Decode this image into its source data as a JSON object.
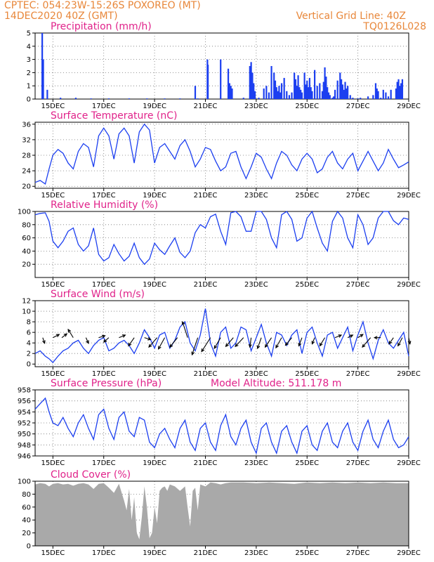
{
  "header": {
    "source_line": "CPTEC:  054:23W-15:26S  POXOREO (MT)",
    "date_line": "14DEC2020 40Z (GMT)",
    "grid_note": "Vertical Grid Line: 40Z",
    "run_code": "TQ0126L028"
  },
  "colors": {
    "header_text": "#e8873a",
    "panel_title": "#e0228a",
    "series_line": "#1c3ff0",
    "cloud_fill": "#a9a9a9",
    "wind_arrow": "#000000"
  },
  "x_axis": {
    "range": [
      14.3,
      29.0
    ],
    "tick_values": [
      15,
      17,
      19,
      21,
      23,
      25,
      27,
      29
    ],
    "tick_labels": [
      "15DEC",
      "17DEC",
      "19DEC",
      "21DEC",
      "23DEC",
      "25DEC",
      "27DEC",
      "29DEC"
    ]
  },
  "chart_data": [
    {
      "type": "bar",
      "title": "Precipitation (mm/h)",
      "ylim": [
        0,
        5
      ],
      "y_ticks": [
        0,
        1,
        2,
        3,
        4,
        5
      ],
      "grid": true,
      "x": [
        14.58,
        14.62,
        14.78,
        15.3,
        15.9,
        16.5,
        17.2,
        18.0,
        18.7,
        19.4,
        20.0,
        20.6,
        20.7,
        21.08,
        21.1,
        21.6,
        21.9,
        21.95,
        22.0,
        22.05,
        22.5,
        22.75,
        22.8,
        22.85,
        22.9,
        22.95,
        23.1,
        23.3,
        23.4,
        23.5,
        23.6,
        23.7,
        23.75,
        23.8,
        23.85,
        23.9,
        23.95,
        24.0,
        24.1,
        24.2,
        24.3,
        24.4,
        24.5,
        24.55,
        24.6,
        24.65,
        24.7,
        24.75,
        24.8,
        24.9,
        24.95,
        25.0,
        25.05,
        25.1,
        25.15,
        25.2,
        25.3,
        25.4,
        25.5,
        25.6,
        25.65,
        25.7,
        25.75,
        25.8,
        25.85,
        25.9,
        26.0,
        26.05,
        26.1,
        26.2,
        26.3,
        26.35,
        26.4,
        26.45,
        26.5,
        26.55,
        26.6,
        26.7,
        26.8,
        27.0,
        27.1,
        27.4,
        27.6,
        27.7,
        27.75,
        27.8,
        27.9,
        28.0,
        28.1,
        28.2,
        28.3,
        28.5,
        28.55,
        28.6,
        28.65,
        28.7,
        28.75
      ],
      "values": [
        5.0,
        3.0,
        0.7,
        0.1,
        0.1,
        0.05,
        0.05,
        0.05,
        0.05,
        0.05,
        0.05,
        1.0,
        0.05,
        3.0,
        2.6,
        3.0,
        2.3,
        1.2,
        1.0,
        0.8,
        0.1,
        2.5,
        2.8,
        2.0,
        1.2,
        0.6,
        0.1,
        0.8,
        1.0,
        0.5,
        2.5,
        2.0,
        1.4,
        0.9,
        0.6,
        1.0,
        0.5,
        1.2,
        1.6,
        0.6,
        0.3,
        0.5,
        2.0,
        1.5,
        1.0,
        1.8,
        0.9,
        0.7,
        0.5,
        2.0,
        1.1,
        1.4,
        0.9,
        1.6,
        0.9,
        0.6,
        2.2,
        1.0,
        1.2,
        0.6,
        1.3,
        2.4,
        1.7,
        0.9,
        0.5,
        0.3,
        0.1,
        0.2,
        0.7,
        1.4,
        2.0,
        1.5,
        1.1,
        0.7,
        1.3,
        0.8,
        1.0,
        0.3,
        0.1,
        0.05,
        0.1,
        0.2,
        0.3,
        1.2,
        0.8,
        0.6,
        0.1,
        0.7,
        0.5,
        0.2,
        0.7,
        0.8,
        1.3,
        1.5,
        1.0,
        1.2,
        1.5
      ]
    },
    {
      "type": "line",
      "title": "Surface Temperature (nC)",
      "ylim": [
        19.5,
        36.5
      ],
      "y_ticks": [
        20,
        24,
        28,
        32,
        36
      ],
      "grid": true,
      "x": [
        14.3,
        14.5,
        14.7,
        14.85,
        15.0,
        15.2,
        15.4,
        15.6,
        15.8,
        16.0,
        16.2,
        16.4,
        16.6,
        16.8,
        17.0,
        17.2,
        17.4,
        17.6,
        17.8,
        18.0,
        18.2,
        18.4,
        18.6,
        18.8,
        19.0,
        19.2,
        19.4,
        19.6,
        19.8,
        20.0,
        20.2,
        20.4,
        20.6,
        20.8,
        21.0,
        21.2,
        21.4,
        21.6,
        21.8,
        22.0,
        22.2,
        22.4,
        22.6,
        22.8,
        23.0,
        23.2,
        23.4,
        23.6,
        23.8,
        24.0,
        24.2,
        24.4,
        24.6,
        24.8,
        25.0,
        25.2,
        25.4,
        25.6,
        25.8,
        26.0,
        26.2,
        26.4,
        26.6,
        26.8,
        27.0,
        27.2,
        27.4,
        27.6,
        27.8,
        28.0,
        28.2,
        28.4,
        28.6,
        28.8,
        29.0
      ],
      "values": [
        21.0,
        21.5,
        20.6,
        24.5,
        28.0,
        29.5,
        28.5,
        26.0,
        24.5,
        29.0,
        31.0,
        30.0,
        25.0,
        33.0,
        35.0,
        33.0,
        27.0,
        33.5,
        35.0,
        33.0,
        26.0,
        34.0,
        36.0,
        34.5,
        26.0,
        30.0,
        31.0,
        29.0,
        27.0,
        30.5,
        32.0,
        29.0,
        25.0,
        27.0,
        30.0,
        29.5,
        26.5,
        24.0,
        25.0,
        28.5,
        29.0,
        25.0,
        22.0,
        25.0,
        28.5,
        27.5,
        24.5,
        22.0,
        26.0,
        29.0,
        28.0,
        25.5,
        24.0,
        27.0,
        28.5,
        27.0,
        23.5,
        24.5,
        27.5,
        29.0,
        26.0,
        24.5,
        27.0,
        28.5,
        24.0,
        26.5,
        29.0,
        26.5,
        24.0,
        26.0,
        29.5,
        27.0,
        24.8,
        25.5,
        26.3
      ]
    },
    {
      "type": "line",
      "title": "Relative Humidity (%)",
      "ylim": [
        0,
        100
      ],
      "y_ticks": [
        20,
        40,
        60,
        80,
        100
      ],
      "grid": true,
      "x": [
        14.3,
        14.5,
        14.7,
        14.85,
        15.0,
        15.2,
        15.4,
        15.6,
        15.8,
        16.0,
        16.2,
        16.4,
        16.6,
        16.8,
        17.0,
        17.2,
        17.4,
        17.6,
        17.8,
        18.0,
        18.2,
        18.4,
        18.6,
        18.8,
        19.0,
        19.2,
        19.4,
        19.6,
        19.8,
        20.0,
        20.2,
        20.4,
        20.6,
        20.8,
        21.0,
        21.2,
        21.4,
        21.6,
        21.8,
        22.0,
        22.2,
        22.4,
        22.6,
        22.8,
        23.0,
        23.2,
        23.4,
        23.6,
        23.8,
        24.0,
        24.2,
        24.4,
        24.6,
        24.8,
        25.0,
        25.2,
        25.4,
        25.6,
        25.8,
        26.0,
        26.2,
        26.4,
        26.6,
        26.8,
        27.0,
        27.2,
        27.4,
        27.6,
        27.8,
        28.0,
        28.2,
        28.4,
        28.6,
        28.8,
        29.0
      ],
      "values": [
        95,
        97,
        98,
        85,
        55,
        45,
        55,
        70,
        75,
        50,
        40,
        48,
        75,
        35,
        25,
        30,
        50,
        36,
        25,
        32,
        52,
        30,
        20,
        28,
        52,
        42,
        35,
        48,
        60,
        38,
        30,
        40,
        68,
        80,
        75,
        92,
        96,
        70,
        50,
        98,
        100,
        92,
        70,
        70,
        100,
        100,
        88,
        60,
        45,
        95,
        100,
        88,
        55,
        60,
        90,
        100,
        75,
        52,
        40,
        85,
        100,
        90,
        60,
        45,
        95,
        80,
        50,
        60,
        90,
        100,
        100,
        86,
        80,
        90,
        88
      ]
    },
    {
      "type": "line",
      "title": "Surface Wind (m/s)",
      "ylim": [
        -0.5,
        12
      ],
      "y_ticks": [
        0,
        2,
        4,
        6,
        8,
        10,
        12
      ],
      "grid": true,
      "x": [
        14.3,
        14.5,
        14.7,
        14.85,
        15.0,
        15.2,
        15.4,
        15.6,
        15.8,
        16.0,
        16.2,
        16.4,
        16.6,
        16.8,
        17.0,
        17.2,
        17.4,
        17.6,
        17.8,
        18.0,
        18.2,
        18.4,
        18.6,
        18.8,
        19.0,
        19.2,
        19.4,
        19.6,
        19.8,
        20.0,
        20.2,
        20.4,
        20.6,
        20.8,
        21.0,
        21.2,
        21.4,
        21.6,
        21.8,
        22.0,
        22.2,
        22.4,
        22.6,
        22.8,
        23.0,
        23.2,
        23.4,
        23.6,
        23.8,
        24.0,
        24.2,
        24.4,
        24.6,
        24.8,
        25.0,
        25.2,
        25.4,
        25.6,
        25.8,
        26.0,
        26.2,
        26.4,
        26.6,
        26.8,
        27.0,
        27.2,
        27.4,
        27.6,
        27.8,
        28.0,
        28.2,
        28.4,
        28.6,
        28.8,
        29.0
      ],
      "values": [
        2.0,
        2.5,
        1.5,
        1.0,
        0.3,
        1.5,
        2.5,
        3.0,
        4.0,
        4.5,
        3.0,
        2.0,
        3.5,
        4.5,
        5.0,
        2.5,
        3.0,
        4.0,
        4.5,
        3.5,
        2.0,
        4.0,
        6.5,
        5.0,
        3.0,
        5.5,
        6.0,
        3.0,
        4.5,
        7.0,
        8.0,
        4.0,
        2.5,
        5.5,
        10.5,
        4.0,
        1.5,
        6.0,
        7.0,
        3.0,
        4.0,
        7.0,
        6.5,
        2.5,
        5.0,
        7.5,
        4.0,
        1.5,
        6.0,
        5.5,
        3.5,
        5.5,
        6.5,
        2.0,
        6.0,
        7.0,
        4.0,
        1.5,
        5.5,
        6.0,
        3.0,
        5.0,
        7.0,
        2.5,
        5.5,
        8.0,
        4.0,
        1.0,
        4.5,
        6.5,
        4.0,
        3.0,
        4.5,
        6.0,
        1.5
      ],
      "wind_arrows": {
        "x": [
          14.6,
          15.0,
          15.35,
          15.8,
          16.3,
          16.8,
          17.2,
          17.6,
          18.2,
          18.6,
          19.1,
          19.4,
          19.9,
          20.3,
          20.7,
          21.2,
          21.6,
          22.1,
          22.5,
          22.8,
          23.2,
          23.6,
          24.0,
          24.4,
          24.8,
          25.3,
          25.7,
          26.1,
          26.6,
          27.0,
          27.5,
          27.9,
          28.4,
          28.75,
          29.0
        ],
        "u": [
          0.3,
          1.0,
          0.8,
          -0.8,
          0.4,
          1.0,
          -0.8,
          1.0,
          -0.9,
          1.0,
          -1.3,
          -1.0,
          -1.2,
          -0.8,
          -0.9,
          -1.4,
          -1.0,
          -1.2,
          -1.3,
          -0.2,
          -0.6,
          -1.0,
          -0.9,
          -1.0,
          -0.5,
          -0.4,
          -0.8,
          1.0,
          0.8,
          0.8,
          -1.3,
          -1.0,
          -0.7,
          -0.7,
          0.2
        ],
        "v": [
          -0.9,
          0.5,
          0.6,
          1.3,
          -0.9,
          0.3,
          -0.7,
          0.4,
          -1.3,
          -0.3,
          -1.5,
          -1.8,
          -1.5,
          2.5,
          -2.7,
          -2.2,
          -1.7,
          -1.4,
          -1.4,
          -1.5,
          -1.7,
          -1.5,
          -1.6,
          -1.2,
          -1.3,
          -1.0,
          -1.3,
          0.4,
          0.4,
          0.5,
          -1.5,
          0.0,
          -1.0,
          -1.3,
          -1.0
        ]
      }
    },
    {
      "type": "line",
      "title": "Surface Pressure (hPa)",
      "annotation": "Model Altitude: 511.178 m",
      "ylim": [
        946,
        958
      ],
      "y_ticks": [
        946,
        948,
        950,
        952,
        954,
        956,
        958
      ],
      "grid": true,
      "x": [
        14.3,
        14.5,
        14.7,
        14.85,
        15.0,
        15.2,
        15.4,
        15.6,
        15.8,
        16.0,
        16.2,
        16.4,
        16.6,
        16.8,
        17.0,
        17.2,
        17.4,
        17.6,
        17.8,
        18.0,
        18.2,
        18.4,
        18.6,
        18.8,
        19.0,
        19.2,
        19.4,
        19.6,
        19.8,
        20.0,
        20.2,
        20.4,
        20.6,
        20.8,
        21.0,
        21.2,
        21.4,
        21.6,
        21.8,
        22.0,
        22.2,
        22.4,
        22.6,
        22.8,
        23.0,
        23.2,
        23.4,
        23.6,
        23.8,
        24.0,
        24.2,
        24.4,
        24.6,
        24.8,
        25.0,
        25.2,
        25.4,
        25.6,
        25.8,
        26.0,
        26.2,
        26.4,
        26.6,
        26.8,
        27.0,
        27.2,
        27.4,
        27.6,
        27.8,
        28.0,
        28.2,
        28.4,
        28.6,
        28.8,
        29.0
      ],
      "values": [
        954.5,
        955.5,
        956.5,
        954.0,
        952.0,
        951.5,
        953.0,
        951.0,
        949.5,
        952.0,
        953.5,
        951.0,
        949.0,
        953.5,
        954.5,
        951.0,
        949.0,
        953.0,
        954.0,
        950.5,
        949.5,
        953.0,
        952.5,
        948.5,
        947.5,
        950.0,
        951.0,
        949.0,
        947.5,
        951.0,
        952.5,
        948.5,
        947.0,
        951.0,
        952.0,
        948.5,
        947.0,
        951.5,
        953.5,
        949.5,
        948.0,
        951.0,
        952.5,
        948.5,
        946.5,
        951.0,
        952.0,
        948.5,
        946.5,
        950.5,
        951.5,
        948.5,
        946.5,
        950.5,
        951.5,
        948.0,
        947.0,
        950.5,
        952.0,
        948.5,
        947.5,
        950.5,
        952.0,
        948.5,
        947.0,
        950.5,
        952.5,
        949.0,
        947.5,
        950.5,
        952.5,
        949.0,
        947.5,
        948.0,
        949.5
      ]
    },
    {
      "type": "area",
      "title": "Cloud Cover (%)",
      "ylim": [
        0,
        100
      ],
      "y_ticks": [
        0,
        20,
        40,
        60,
        80,
        100
      ],
      "grid": true,
      "x": [
        14.3,
        14.5,
        14.7,
        14.85,
        15.0,
        15.2,
        15.4,
        15.6,
        15.8,
        16.0,
        16.2,
        16.4,
        16.6,
        16.8,
        17.0,
        17.2,
        17.4,
        17.6,
        17.8,
        17.9,
        18.0,
        18.1,
        18.2,
        18.3,
        18.4,
        18.5,
        18.6,
        18.7,
        18.8,
        18.9,
        19.0,
        19.1,
        19.2,
        19.3,
        19.4,
        19.5,
        19.6,
        19.8,
        20.0,
        20.2,
        20.3,
        20.4,
        20.5,
        20.6,
        20.7,
        20.8,
        21.0,
        21.2,
        21.4,
        21.6,
        21.8,
        22.0,
        22.5,
        23.0,
        23.5,
        24.0,
        24.5,
        25.0,
        25.5,
        26.0,
        26.5,
        27.0,
        27.5,
        28.0,
        28.5,
        29.0
      ],
      "values": [
        95,
        97,
        96,
        92,
        96,
        97,
        95,
        96,
        93,
        96,
        97,
        95,
        88,
        96,
        97,
        90,
        82,
        96,
        70,
        55,
        88,
        40,
        75,
        20,
        10,
        45,
        92,
        60,
        12,
        20,
        60,
        35,
        85,
        90,
        92,
        85,
        95,
        92,
        85,
        92,
        60,
        30,
        85,
        90,
        55,
        95,
        92,
        98,
        97,
        95,
        97,
        98,
        98,
        97,
        98,
        97,
        96,
        98,
        97,
        98,
        97,
        98,
        97,
        98,
        97,
        97
      ]
    }
  ]
}
